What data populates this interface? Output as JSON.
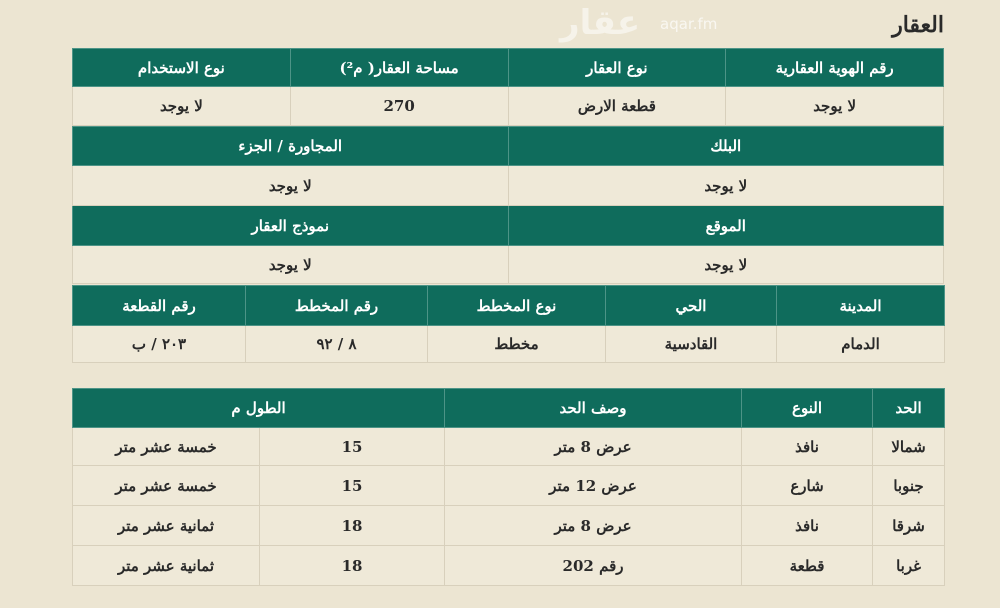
{
  "title": "العقار",
  "t1": {
    "headers": [
      "رقم الهوية العقارية",
      "نوع العقار",
      "مساحة العقار( م²)",
      "نوع الاستخدام"
    ],
    "values": [
      "لا يوجد",
      "قطعة الارض",
      "270",
      "لا يوجد"
    ]
  },
  "t2": {
    "h1": [
      "البلك",
      "المجاورة / الجزء"
    ],
    "v1": [
      "لا يوجد",
      "لا يوجد"
    ],
    "h2": [
      "الموقع",
      "نموذج العقار"
    ],
    "v2": [
      "لا يوجد",
      "لا يوجد"
    ]
  },
  "t3": {
    "headers": [
      "المدينة",
      "الحي",
      "نوع المخطط",
      "رقم المخطط",
      "رقم القطعة"
    ],
    "values": [
      "الدمام",
      "القادسية",
      "مخطط",
      "٨ / ٩٢",
      "٢٠٣ / ب"
    ]
  },
  "t4": {
    "headers": [
      "الحد",
      "النوع",
      "وصف الحد",
      "الطول م"
    ],
    "rows": [
      [
        "شمالا",
        "نافذ",
        "عرض 8 متر",
        "15",
        "خمسة عشر متر"
      ],
      [
        "جنوبا",
        "شارع",
        "عرض 12 متر",
        "15",
        "خمسة عشر متر"
      ],
      [
        "شرقا",
        "نافذ",
        "عرض 8 متر",
        "18",
        "ثمانية عشر متر"
      ],
      [
        "غربا",
        "قطعة",
        "رقم 202",
        "18",
        "ثمانية عشر متر"
      ]
    ]
  },
  "watermark": {
    "logo": "عقار",
    "site": "aqar.fm"
  },
  "colors": {
    "header": "#0f6c5c",
    "background": "#ece5d2"
  }
}
